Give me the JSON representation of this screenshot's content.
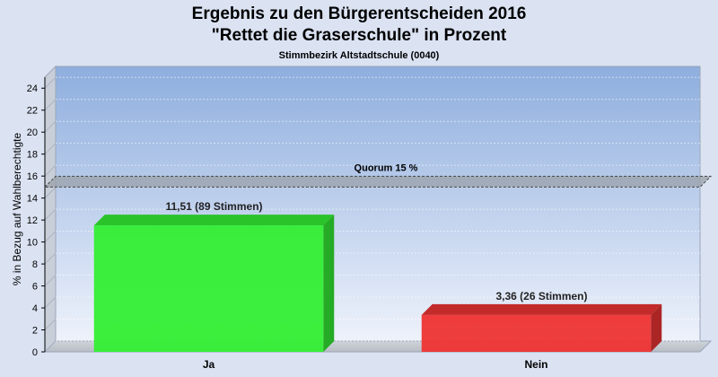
{
  "chart_data": {
    "type": "bar",
    "title": "Ergebnis zu den Bürgerentscheiden 2016",
    "title2": "\"Rettet die Graserschule\" in Prozent",
    "subtitle": "Stimmbezirk Altstadtschule (0040)",
    "ylabel": "% in Bezug auf Wahlberechtigte",
    "categories": [
      "Ja",
      "Nein"
    ],
    "values": [
      11.51,
      3.36
    ],
    "data_labels": [
      "11,51 (89 Stimmen)",
      "3,36 (26 Stimmen)"
    ],
    "colors": [
      "#33ee33",
      "#ee3333"
    ],
    "ylim": [
      0,
      25
    ],
    "yticks": [
      "0",
      "2",
      "4",
      "6",
      "8",
      "10",
      "12",
      "14",
      "16",
      "18",
      "20",
      "22",
      "24"
    ],
    "quorum": {
      "value": 15,
      "label": "Quorum 15 %"
    },
    "grid": true
  }
}
